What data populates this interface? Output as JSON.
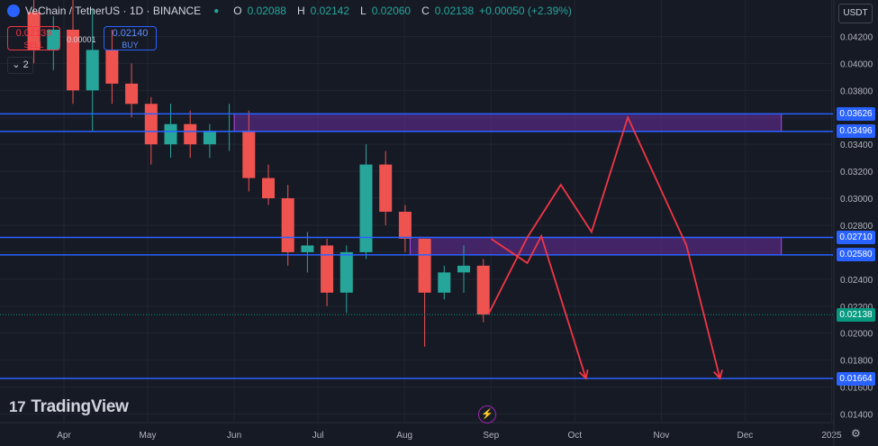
{
  "header": {
    "symbol": "VeChain / TetherUS · 1D · BINANCE",
    "o_label": "O",
    "o_value": "0.02088",
    "h_label": "H",
    "h_value": "0.02142",
    "l_label": "L",
    "l_value": "0.02060",
    "c_label": "C",
    "c_value": "0.02138",
    "change": "+0.00050 (+2.39%)"
  },
  "order": {
    "sell_price": "0.02139",
    "sell_label": "SELL",
    "spread": "0.00001",
    "buy_price": "0.02140",
    "buy_label": "BUY"
  },
  "indicator_toggle": {
    "count": "2"
  },
  "currency": "USDT",
  "branding": "TradingView",
  "colors": {
    "up": "#26a69a",
    "down": "#ef5350",
    "level": "#2962ff",
    "zone": "#6a2f9e",
    "projection": "#f23645",
    "last_price": "#089981"
  },
  "chart_data": {
    "type": "candlestick",
    "symbol": "VeChain / TetherUS",
    "interval": "1D",
    "exchange": "BINANCE",
    "y_axis_ticks": [
      "0.04200",
      "0.04000",
      "0.03800",
      "0.03600",
      "0.03400",
      "0.03200",
      "0.03000",
      "0.02800",
      "0.02600",
      "0.02400",
      "0.02200",
      "0.02000",
      "0.01800",
      "0.01600",
      "0.01400"
    ],
    "x_axis_ticks": [
      "Apr",
      "May",
      "Jun",
      "Jul",
      "Aug",
      "Sep",
      "Oct",
      "Nov",
      "Dec",
      "2025"
    ],
    "ylim": [
      0.0133,
      0.0437
    ],
    "horizontal_levels": [
      {
        "label": "0.03626",
        "value": 0.03626
      },
      {
        "label": "0.03496",
        "value": 0.03496
      },
      {
        "label": "0.02710",
        "value": 0.0271
      },
      {
        "label": "0.02580",
        "value": 0.0258
      },
      {
        "label": "0.01664",
        "value": 0.01664
      }
    ],
    "last_price": {
      "label": "0.02138",
      "value": 0.02138
    },
    "zones": [
      {
        "from_date": "2024-06-01",
        "to_date": "2024-12-14",
        "low": 0.03496,
        "high": 0.03626
      },
      {
        "from_date": "2024-08-03",
        "to_date": "2024-12-14",
        "low": 0.0258,
        "high": 0.0271
      }
    ],
    "projections": [
      [
        [
          "2024-08-31",
          0.02138
        ],
        [
          "2024-09-14",
          0.0271
        ],
        [
          "2024-09-26",
          0.031
        ],
        [
          "2024-10-07",
          0.0275
        ],
        [
          "2024-10-20",
          0.036
        ],
        [
          "2024-11-10",
          0.0265
        ],
        [
          "2024-11-22",
          0.01664
        ]
      ],
      [
        [
          "2024-09-01",
          0.027
        ],
        [
          "2024-09-14",
          0.0252
        ],
        [
          "2024-09-19",
          0.0272
        ],
        [
          "2024-10-05",
          0.01664
        ]
      ]
    ],
    "candles": [
      [
        "2024-03-18",
        0.0438,
        0.0452,
        0.04,
        0.041
      ],
      [
        "2024-03-25",
        0.041,
        0.0435,
        0.0395,
        0.0425
      ],
      [
        "2024-04-01",
        0.0425,
        0.045,
        0.037,
        0.038
      ],
      [
        "2024-04-08",
        0.038,
        0.044,
        0.035,
        0.041
      ],
      [
        "2024-04-15",
        0.041,
        0.0425,
        0.037,
        0.0385
      ],
      [
        "2024-04-22",
        0.0385,
        0.04,
        0.036,
        0.037
      ],
      [
        "2024-04-29",
        0.037,
        0.0375,
        0.0325,
        0.034
      ],
      [
        "2024-05-06",
        0.034,
        0.037,
        0.033,
        0.0355
      ],
      [
        "2024-05-13",
        0.0355,
        0.0365,
        0.033,
        0.034
      ],
      [
        "2024-05-20",
        0.034,
        0.0355,
        0.033,
        0.035
      ],
      [
        "2024-05-27",
        0.035,
        0.037,
        0.0335,
        0.035
      ],
      [
        "2024-06-03",
        0.035,
        0.0365,
        0.0305,
        0.0315
      ],
      [
        "2024-06-10",
        0.0315,
        0.0325,
        0.0295,
        0.03
      ],
      [
        "2024-06-17",
        0.03,
        0.031,
        0.025,
        0.026
      ],
      [
        "2024-06-24",
        0.026,
        0.0275,
        0.0245,
        0.0265
      ],
      [
        "2024-07-01",
        0.0265,
        0.027,
        0.022,
        0.023
      ],
      [
        "2024-07-08",
        0.023,
        0.0265,
        0.0215,
        0.026
      ],
      [
        "2024-07-15",
        0.026,
        0.034,
        0.0255,
        0.0325
      ],
      [
        "2024-07-22",
        0.0325,
        0.0335,
        0.028,
        0.029
      ],
      [
        "2024-07-29",
        0.029,
        0.0295,
        0.026,
        0.027
      ],
      [
        "2024-08-05",
        0.027,
        0.027,
        0.019,
        0.023
      ],
      [
        "2024-08-12",
        0.023,
        0.025,
        0.0225,
        0.0245
      ],
      [
        "2024-08-19",
        0.0245,
        0.0265,
        0.023,
        0.025
      ],
      [
        "2024-08-26",
        0.025,
        0.0255,
        0.0208,
        0.02138
      ]
    ]
  }
}
